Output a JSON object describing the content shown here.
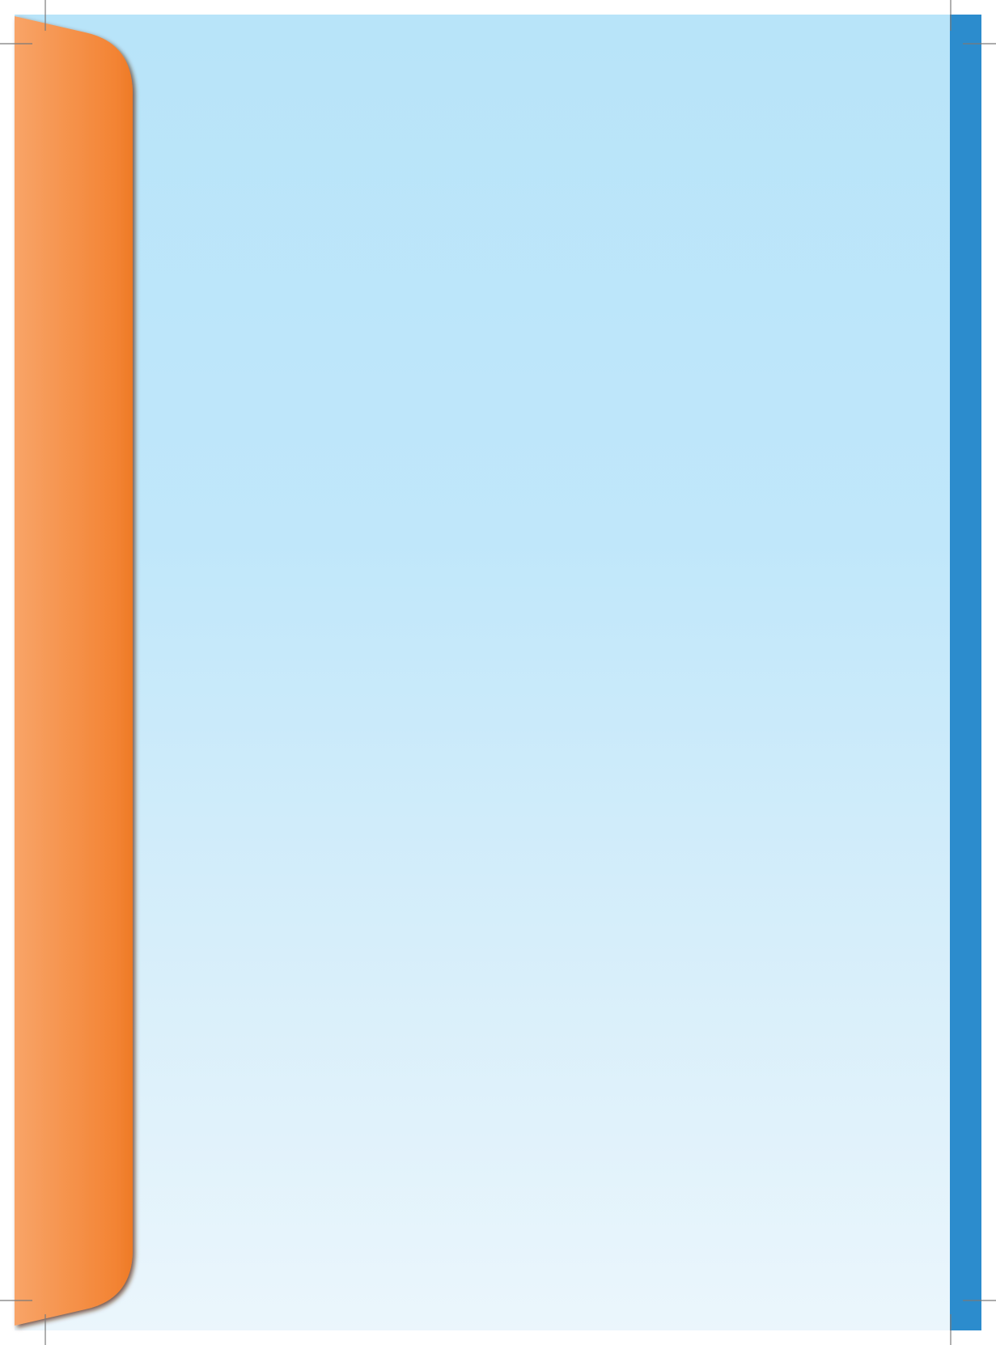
{
  "colors": {
    "panel_top": "#b8e4f9",
    "panel_bottom": "#ebf6fc",
    "stripe": "#2c8ccd",
    "tab_light": "#f8a468",
    "tab_dark": "#f07f2c",
    "tab_shadow": "#6a3410",
    "crop_mark": "#7a7a7a"
  }
}
